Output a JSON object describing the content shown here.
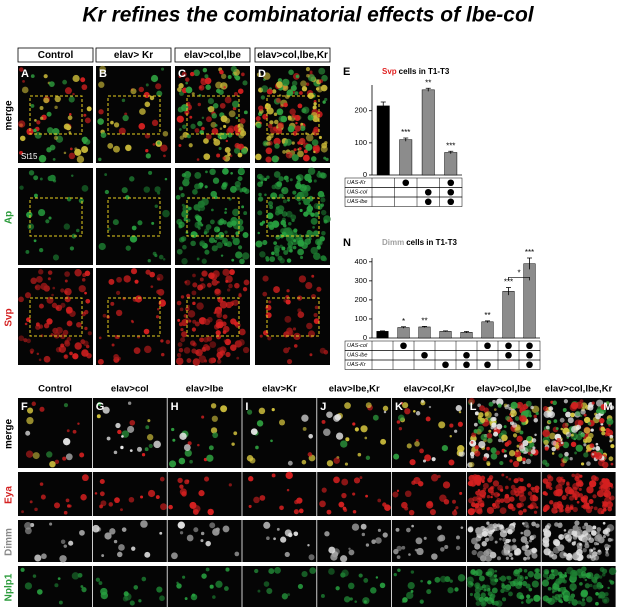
{
  "title": "Kr refines the combinatorial effects of lbe-col",
  "top": {
    "columns": [
      "Control",
      "elav> Kr",
      "elav>col,lbe",
      "elav>col,lbe,Kr"
    ],
    "rows": [
      "merge",
      "Ap",
      "Svp"
    ],
    "letters": [
      "A",
      "B",
      "C",
      "D"
    ],
    "stage": "St15"
  },
  "bottom": {
    "columns": [
      "Control",
      "elav>col",
      "elav>lbe",
      "elav>Kr",
      "elav>lbe,Kr",
      "elav>col,Kr",
      "elav>col,lbe",
      "elav>col,lbe,Kr"
    ],
    "rows": [
      "merge",
      "Eya",
      "Dimm",
      "Nplp1"
    ],
    "letters": [
      "F",
      "G",
      "H",
      "I",
      "J",
      "K",
      "L",
      "M"
    ]
  },
  "chart_data": [
    {
      "type": "bar",
      "panel": "E",
      "marker": "Svp",
      "marker_color": "#e02020",
      "title": "cells in T1-T3",
      "values": [
        215,
        110,
        265,
        70
      ],
      "errors": [
        12,
        5,
        5,
        4
      ],
      "colors": [
        "#000000",
        "#8c8c8c",
        "#8c8c8c",
        "#8c8c8c"
      ],
      "significance": [
        null,
        "***",
        "**",
        "***"
      ],
      "ylim": [
        0,
        280
      ],
      "yticks": [
        0,
        100,
        200
      ],
      "genotype": [
        {
          "label": "UAS-Kr",
          "present": [
            false,
            true,
            false,
            true
          ]
        },
        {
          "label": "UAS-col",
          "present": [
            false,
            false,
            true,
            true
          ]
        },
        {
          "label": "UAS-lbe",
          "present": [
            false,
            false,
            true,
            true
          ]
        }
      ]
    },
    {
      "type": "bar",
      "panel": "N",
      "marker": "Dimm",
      "marker_color": "#a0a0a0",
      "title": "cells in T1-T3",
      "values": [
        35,
        55,
        58,
        35,
        30,
        85,
        245,
        390
      ],
      "errors": [
        2,
        4,
        3,
        2,
        4,
        5,
        20,
        30
      ],
      "colors": [
        "#000000",
        "#8c8c8c",
        "#8c8c8c",
        "#8c8c8c",
        "#8c8c8c",
        "#8c8c8c",
        "#8c8c8c",
        "#8c8c8c"
      ],
      "significance": [
        null,
        "*",
        "**",
        null,
        null,
        "**",
        "***",
        "***"
      ],
      "comparison": {
        "between": [
          6,
          7
        ],
        "label": "*"
      },
      "ylim": [
        0,
        420
      ],
      "yticks": [
        0,
        100,
        200,
        300,
        400
      ],
      "genotype": [
        {
          "label": "UAS-col",
          "present": [
            false,
            true,
            false,
            false,
            false,
            true,
            true,
            true
          ]
        },
        {
          "label": "UAS-lbe",
          "present": [
            false,
            false,
            true,
            false,
            true,
            false,
            true,
            true
          ]
        },
        {
          "label": "UAS-Kr",
          "present": [
            false,
            false,
            false,
            true,
            true,
            true,
            false,
            true
          ]
        }
      ]
    }
  ]
}
